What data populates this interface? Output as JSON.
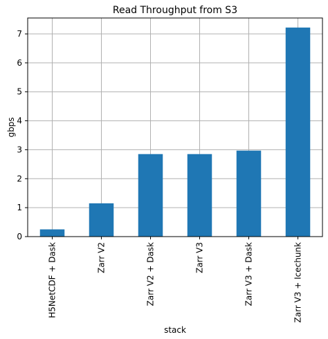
{
  "chart_data": {
    "type": "bar",
    "title": "Read Throughput from S3",
    "xlabel": "stack",
    "ylabel": "gbps",
    "categories": [
      "H5NetCDF + Dask",
      "Zarr V2",
      "Zarr V2 + Dask",
      "Zarr V3",
      "Zarr V3 + Dask",
      "Zarr V3 + Icechunk"
    ],
    "values": [
      0.25,
      1.15,
      2.85,
      2.85,
      2.97,
      7.22
    ],
    "ylim": [
      0,
      7.55
    ],
    "yticks": [
      0,
      1,
      2,
      3,
      4,
      5,
      6,
      7
    ],
    "grid": true,
    "legend": "none",
    "bar_color": "#1f77b4",
    "grid_color": "#b0b0b0"
  }
}
